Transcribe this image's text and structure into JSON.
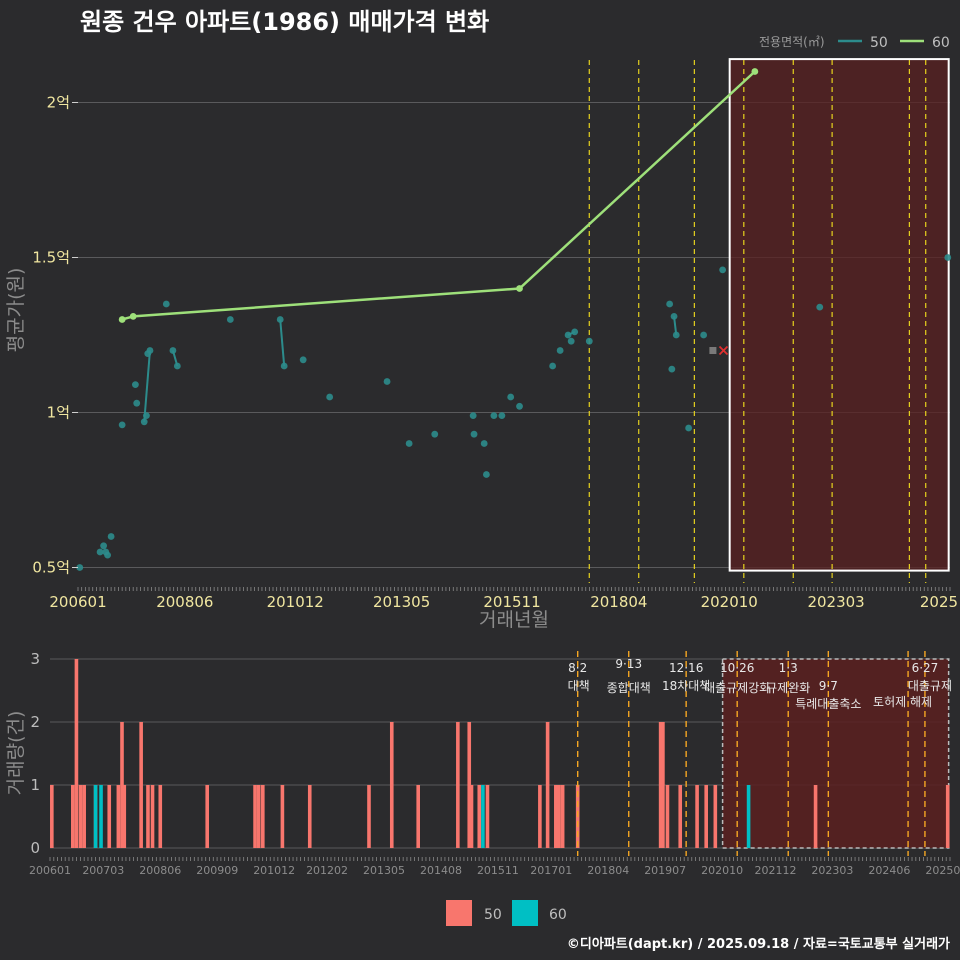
{
  "chart_data": {
    "title": "원종 건우 아파트(1986) 매매가격 변화",
    "footer": "©디아파트(dapt.kr) / 2025.09.18 / 자료=국토교통부 실거래가",
    "colors": {
      "background": "#2b2b2d",
      "series_50_line": "#2c8c8c",
      "series_60_line": "#9ee07a",
      "bar_50": "#f8766d",
      "bar_60": "#00bfc4",
      "highlight_fill": "#5a2020",
      "policy_top": "#e6d21e",
      "policy_bottom": "#f5a623",
      "marker_x": "#e03030",
      "marker_sq": "#7a7a7a"
    },
    "x_range": [
      2006.0,
      2025.75
    ],
    "x_tick_labels": [
      "200601",
      "200806",
      "201012",
      "201305",
      "201511",
      "201804",
      "202010",
      "202303",
      "2025"
    ],
    "x_tick_values": [
      2006.0,
      2008.42,
      2010.92,
      2013.33,
      2015.83,
      2018.25,
      2020.75,
      2023.17,
      2025.5
    ],
    "policy_dates": [
      2017.58,
      2018.7,
      2019.96,
      2021.08,
      2022.2,
      2023.08,
      2024.83,
      2025.2
    ],
    "highlight_range": [
      2020.76,
      2025.72
    ],
    "price_chart": {
      "type": "scatter+line",
      "xlabel": "거래년월",
      "ylabel": "평균가(원)",
      "legend_title": "전용면적(㎡)",
      "ylim": [
        0.45,
        2.15
      ],
      "y_tick_values": [
        0.5,
        1.0,
        1.5,
        2.0
      ],
      "y_tick_labels": [
        "0.5억",
        "1억",
        "1.5억",
        "2억"
      ],
      "series": [
        {
          "name": "50",
          "points": [
            [
              2006.04,
              0.5
            ],
            [
              2006.5,
              0.55
            ],
            [
              2006.58,
              0.57
            ],
            [
              2006.63,
              0.55
            ],
            [
              2006.67,
              0.54
            ],
            [
              2006.75,
              0.6
            ],
            [
              2007.0,
              0.96
            ],
            [
              2007.3,
              1.09
            ],
            [
              2007.33,
              1.03
            ],
            [
              2007.5,
              0.97
            ],
            [
              2007.55,
              0.99
            ],
            [
              2007.58,
              1.19
            ],
            [
              2007.63,
              1.2
            ],
            [
              2008.0,
              1.35
            ],
            [
              2008.15,
              1.2
            ],
            [
              2008.25,
              1.15
            ],
            [
              2009.45,
              1.3
            ],
            [
              2010.58,
              1.3
            ],
            [
              2010.67,
              1.15
            ],
            [
              2011.1,
              1.17
            ],
            [
              2011.7,
              1.05
            ],
            [
              2013.0,
              1.1
            ],
            [
              2013.5,
              0.9
            ],
            [
              2014.08,
              0.93
            ],
            [
              2014.95,
              0.99
            ],
            [
              2014.97,
              0.93
            ],
            [
              2015.2,
              0.9
            ],
            [
              2015.25,
              0.8
            ],
            [
              2015.42,
              0.99
            ],
            [
              2015.6,
              0.99
            ],
            [
              2015.8,
              1.05
            ],
            [
              2016.0,
              1.02
            ],
            [
              2016.75,
              1.15
            ],
            [
              2016.92,
              1.2
            ],
            [
              2017.1,
              1.25
            ],
            [
              2017.17,
              1.23
            ],
            [
              2017.25,
              1.26
            ],
            [
              2017.58,
              1.23
            ],
            [
              2019.4,
              1.35
            ],
            [
              2019.45,
              1.14
            ],
            [
              2019.5,
              1.31
            ],
            [
              2019.55,
              1.25
            ],
            [
              2019.83,
              0.95
            ],
            [
              2020.17,
              1.25
            ],
            [
              2020.6,
              1.46
            ],
            [
              2022.8,
              1.34
            ],
            [
              2025.7,
              1.5
            ]
          ],
          "connected_segments": [
            [
              [
                2007.5,
                0.97
              ],
              [
                2007.63,
                1.2
              ]
            ],
            [
              [
                2008.15,
                1.2
              ],
              [
                2008.25,
                1.15
              ]
            ],
            [
              [
                2010.58,
                1.3
              ],
              [
                2010.67,
                1.15
              ]
            ],
            [
              [
                2017.1,
                1.25
              ],
              [
                2017.25,
                1.26
              ]
            ],
            [
              [
                2019.5,
                1.31
              ],
              [
                2019.55,
                1.25
              ]
            ]
          ]
        },
        {
          "name": "60",
          "points": [
            [
              2007.0,
              1.3
            ],
            [
              2007.25,
              1.31
            ],
            [
              2016.0,
              1.4
            ],
            [
              2021.33,
              2.1
            ]
          ]
        }
      ],
      "markers": [
        {
          "kind": "square",
          "x": 2020.38,
          "y": 1.2
        },
        {
          "kind": "x",
          "x": 2020.62,
          "y": 1.2
        }
      ]
    },
    "volume_chart": {
      "type": "bar",
      "ylabel": "거래량(건)",
      "ylim": [
        0,
        3
      ],
      "y_tick_values": [
        0,
        1,
        2,
        3
      ],
      "y_tick_labels": [
        "0",
        "1",
        "2",
        "3"
      ],
      "x_tick_labels": [
        "200601",
        "200703",
        "200806",
        "200909",
        "201012",
        "201202",
        "201305",
        "201408",
        "201511",
        "201701",
        "201804",
        "201907",
        "202010",
        "202112",
        "202303",
        "202406",
        "202509"
      ],
      "x_tick_values": [
        2006.0,
        2007.17,
        2008.42,
        2009.67,
        2010.92,
        2012.08,
        2013.33,
        2014.58,
        2015.83,
        2017.0,
        2018.25,
        2019.5,
        2020.75,
        2021.92,
        2023.17,
        2024.42,
        2025.67
      ],
      "series": [
        {
          "name": "50",
          "bars": [
            [
              2006.04,
              1
            ],
            [
              2006.5,
              1
            ],
            [
              2006.58,
              3
            ],
            [
              2006.67,
              1
            ],
            [
              2006.75,
              1
            ],
            [
              2007.0,
              1
            ],
            [
              2007.3,
              1
            ],
            [
              2007.5,
              1
            ],
            [
              2007.58,
              2
            ],
            [
              2007.63,
              1
            ],
            [
              2008.0,
              2
            ],
            [
              2008.15,
              1
            ],
            [
              2008.25,
              1
            ],
            [
              2008.42,
              1
            ],
            [
              2009.45,
              1
            ],
            [
              2010.5,
              1
            ],
            [
              2010.58,
              1
            ],
            [
              2010.67,
              1
            ],
            [
              2011.1,
              1
            ],
            [
              2011.7,
              1
            ],
            [
              2013.0,
              1
            ],
            [
              2013.5,
              2
            ],
            [
              2014.08,
              1
            ],
            [
              2014.95,
              2
            ],
            [
              2015.2,
              2
            ],
            [
              2015.25,
              1
            ],
            [
              2015.42,
              1
            ],
            [
              2015.6,
              1
            ],
            [
              2016.75,
              1
            ],
            [
              2016.92,
              2
            ],
            [
              2017.1,
              1
            ],
            [
              2017.17,
              1
            ],
            [
              2017.25,
              1
            ],
            [
              2017.58,
              1
            ],
            [
              2019.4,
              2
            ],
            [
              2019.45,
              2
            ],
            [
              2019.55,
              1
            ],
            [
              2019.83,
              1
            ],
            [
              2020.2,
              1
            ],
            [
              2020.4,
              1
            ],
            [
              2020.6,
              1
            ],
            [
              2022.8,
              1
            ],
            [
              2025.7,
              1
            ]
          ]
        },
        {
          "name": "60",
          "bars": [
            [
              2007.0,
              1
            ],
            [
              2007.12,
              1
            ],
            [
              2015.5,
              1
            ],
            [
              2021.33,
              1
            ]
          ]
        }
      ],
      "annotations": [
        {
          "date": "8·2",
          "text": "대책",
          "x": 2017.58
        },
        {
          "date": "9·13",
          "text": "종합대책",
          "x": 2018.7
        },
        {
          "date": "12·16",
          "text": "18차대책",
          "x": 2019.96
        },
        {
          "date": "10·26",
          "text": "대출규제강화",
          "x": 2021.08
        },
        {
          "date": "1·3",
          "text": "규제완화",
          "x": 2022.2
        },
        {
          "date": "9·7",
          "text": "특례대출축소",
          "x": 2023.08
        },
        {
          "date": "",
          "text": "토허제 해제",
          "x": 2024.83
        },
        {
          "date": "6·27",
          "text": "대출규제",
          "x": 2025.2
        }
      ]
    }
  }
}
